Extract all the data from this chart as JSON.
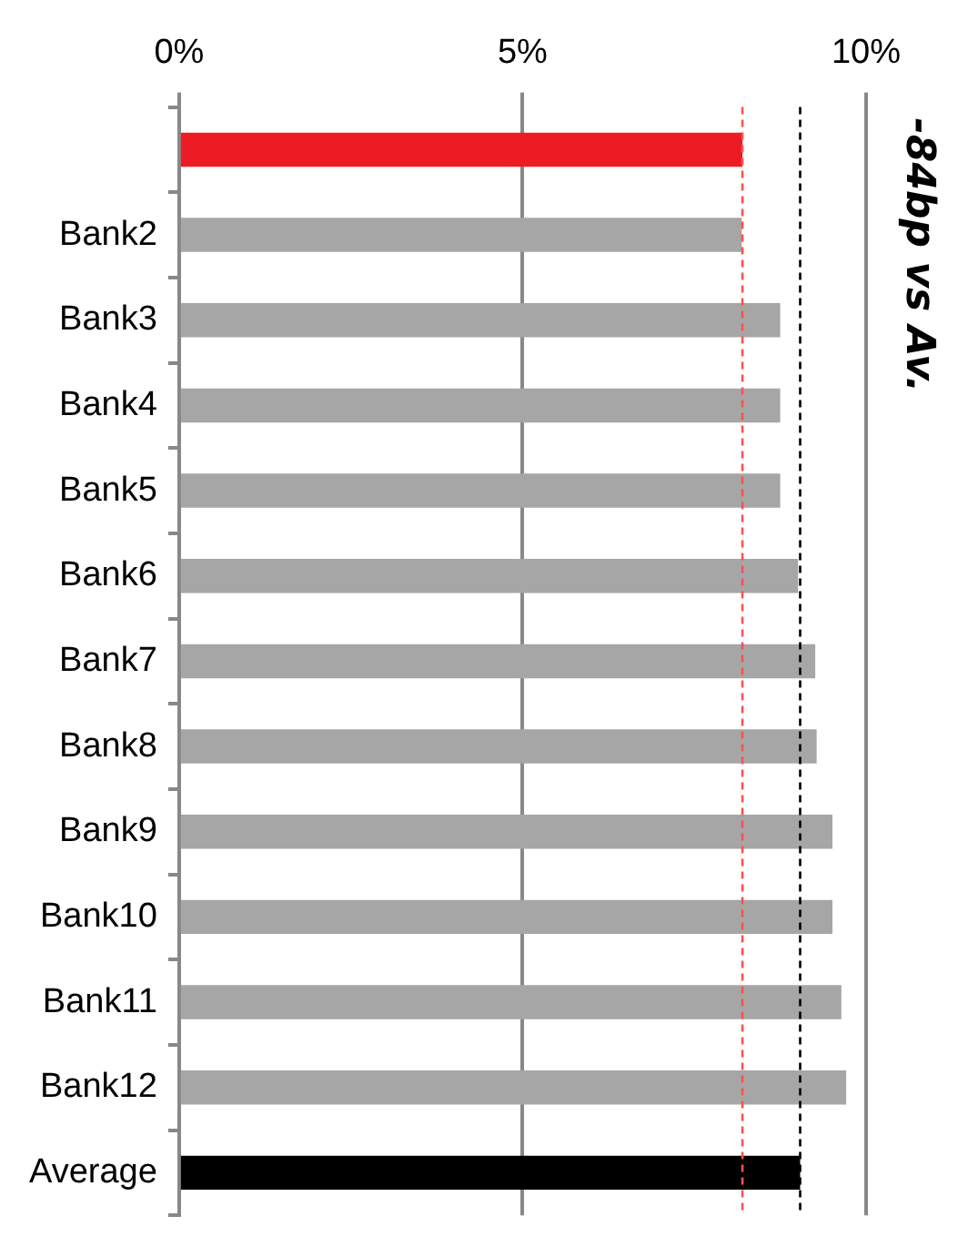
{
  "chart_data": {
    "type": "bar",
    "orientation": "horizontal",
    "categories": [
      null,
      "Bank2",
      "Bank3",
      "Bank4",
      "Bank5",
      "Bank6",
      "Bank7",
      "Bank8",
      "Bank9",
      "Bank10",
      "Bank11",
      "Bank12",
      "Average"
    ],
    "values": [
      8.2,
      8.19,
      8.75,
      8.75,
      8.75,
      9.01,
      9.26,
      9.28,
      9.51,
      9.51,
      9.64,
      9.71,
      9.04
    ],
    "colors": [
      "#ed1c24",
      "#a6a6a6",
      "#a6a6a6",
      "#a6a6a6",
      "#a6a6a6",
      "#a6a6a6",
      "#a6a6a6",
      "#a6a6a6",
      "#a6a6a6",
      "#a6a6a6",
      "#a6a6a6",
      "#a6a6a6",
      "#000000"
    ],
    "xlim": [
      0,
      10
    ],
    "xticks": [
      {
        "value": 0,
        "label": "0%"
      },
      {
        "value": 5,
        "label": "5%"
      },
      {
        "value": 10,
        "label": "10%"
      }
    ],
    "grid": "x",
    "legend": false,
    "ref_lines": [
      {
        "axis": "x",
        "value": 8.2,
        "color": "#ff5050",
        "line_style": "dashed"
      },
      {
        "axis": "x",
        "value": 9.04,
        "color": "#000000",
        "line_style": "dashed"
      }
    ],
    "annotations": [
      "-84bp vs Av."
    ]
  }
}
